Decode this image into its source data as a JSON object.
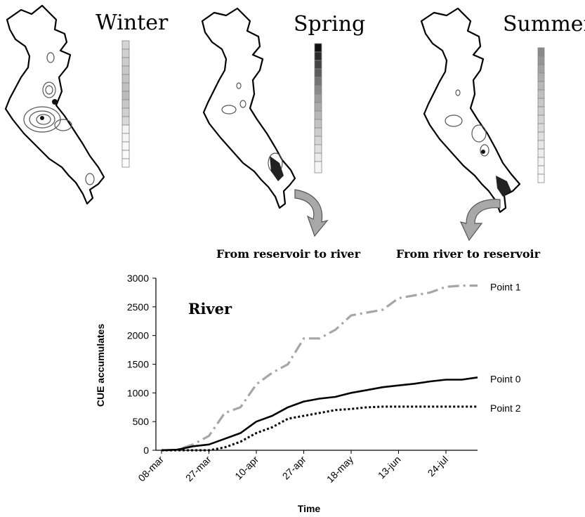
{
  "maps": [
    {
      "season": "Winter"
    },
    {
      "season": "Spring"
    },
    {
      "season": "Summer"
    }
  ],
  "flow_labels": {
    "spring": "From reservoir to river",
    "summer": "From river to reservoir"
  },
  "chart_data": {
    "type": "line",
    "title": "River",
    "xlabel": "Time",
    "ylabel": "CUE accumulates",
    "ylim": [
      0,
      3000
    ],
    "yticks": [
      0,
      500,
      1000,
      1500,
      2000,
      2500,
      3000
    ],
    "xticks": [
      "08-mar",
      "27-mar",
      "10-apr",
      "27-apr",
      "18-may",
      "13-jun",
      "24-jul"
    ],
    "x_count": 21,
    "xtick_positions": [
      0,
      3,
      6,
      9,
      12,
      15,
      18
    ],
    "series": [
      {
        "name": "Point 1",
        "color": "#a6a6a6",
        "style": "dashdot",
        "values": [
          0,
          10,
          100,
          250,
          650,
          750,
          1150,
          1350,
          1500,
          1950,
          1950,
          2100,
          2350,
          2400,
          2450,
          2650,
          2700,
          2750,
          2850,
          2870,
          2870
        ]
      },
      {
        "name": "Point 0",
        "color": "#000000",
        "style": "solid",
        "values": [
          0,
          10,
          70,
          100,
          200,
          300,
          500,
          600,
          750,
          850,
          900,
          930,
          1000,
          1050,
          1100,
          1130,
          1160,
          1200,
          1230,
          1230,
          1270
        ]
      },
      {
        "name": "Point 2",
        "color": "#000000",
        "style": "dotted",
        "values": [
          0,
          0,
          0,
          0,
          50,
          150,
          300,
          400,
          550,
          600,
          650,
          700,
          720,
          750,
          760,
          760,
          760,
          760,
          760,
          760,
          760
        ]
      }
    ]
  }
}
